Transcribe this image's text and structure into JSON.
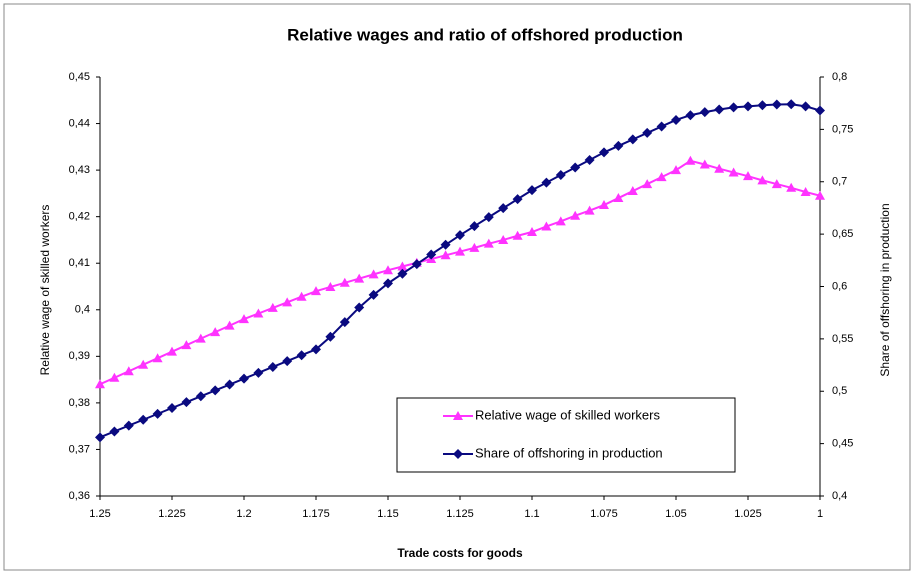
{
  "chart_data": {
    "type": "line",
    "title": "Relative wages and ratio of offshored production",
    "x_label": "Trade costs for goods",
    "y_label": "Relative wage of skilled workers",
    "y2_label": "Share of offshoring in production",
    "x": [
      1.25,
      1.245,
      1.24,
      1.235,
      1.23,
      1.225,
      1.22,
      1.215,
      1.21,
      1.205,
      1.2,
      1.195,
      1.19,
      1.185,
      1.18,
      1.175,
      1.17,
      1.165,
      1.16,
      1.155,
      1.15,
      1.145,
      1.14,
      1.135,
      1.13,
      1.125,
      1.12,
      1.115,
      1.11,
      1.105,
      1.1,
      1.095,
      1.09,
      1.085,
      1.08,
      1.075,
      1.07,
      1.065,
      1.06,
      1.055,
      1.05,
      1.045,
      1.04,
      1.035,
      1.03,
      1.025,
      1.02,
      1.015,
      1.01,
      1.005,
      1
    ],
    "xlim": [
      1.25,
      1
    ],
    "xticks": [
      1.25,
      1.225,
      1.2,
      1.175,
      1.15,
      1.125,
      1.1,
      1.075,
      1.05,
      1.025,
      1
    ],
    "ylim": [
      0.36,
      0.45
    ],
    "yticks": [
      {
        "value": 0.36,
        "label": "0,36"
      },
      {
        "value": 0.37,
        "label": "0,37"
      },
      {
        "value": 0.38,
        "label": "0,38"
      },
      {
        "value": 0.39,
        "label": "0,39"
      },
      {
        "value": 0.4,
        "label": "0,4"
      },
      {
        "value": 0.41,
        "label": "0,41"
      },
      {
        "value": 0.42,
        "label": "0,42"
      },
      {
        "value": 0.43,
        "label": "0,43"
      },
      {
        "value": 0.44,
        "label": "0,44"
      },
      {
        "value": 0.45,
        "label": "0,45"
      }
    ],
    "y2lim": [
      0.4,
      0.8
    ],
    "y2ticks": [
      {
        "value": 0.4,
        "label": "0,4"
      },
      {
        "value": 0.45,
        "label": "0,45"
      },
      {
        "value": 0.5,
        "label": "0,5"
      },
      {
        "value": 0.55,
        "label": "0,55"
      },
      {
        "value": 0.6,
        "label": "0,6"
      },
      {
        "value": 0.65,
        "label": "0,65"
      },
      {
        "value": 0.7,
        "label": "0,7"
      },
      {
        "value": 0.75,
        "label": "0,75"
      },
      {
        "value": 0.8,
        "label": "0,8"
      }
    ],
    "grid": false,
    "legend": "lower right",
    "series": [
      {
        "name": "Relative wage of skilled workers",
        "color": "#ff33ff",
        "marker": "triangle",
        "values": [
          0.384,
          0.3854,
          0.3868,
          0.3882,
          0.3896,
          0.391,
          0.3924,
          0.3938,
          0.3952,
          0.3966,
          0.398,
          0.3992,
          0.4004,
          0.4016,
          0.4028,
          0.404,
          0.4049,
          0.4058,
          0.4067,
          0.4076,
          0.4085,
          0.4093,
          0.4101,
          0.4109,
          0.4117,
          0.4125,
          0.4133,
          0.4142,
          0.415,
          0.4159,
          0.4167,
          0.4179,
          0.419,
          0.4202,
          0.4213,
          0.4225,
          0.424,
          0.4255,
          0.427,
          0.4285,
          0.43,
          0.432,
          0.4312,
          0.4303,
          0.4295,
          0.4287,
          0.4278,
          0.427,
          0.4262,
          0.4253,
          0.4245
        ]
      },
      {
        "name": "Share of offshoring in production",
        "color": "#0a0a80",
        "marker": "diamond",
        "axis": "y2",
        "values": [
          0.456,
          0.4616,
          0.4672,
          0.4728,
          0.4784,
          0.484,
          0.4896,
          0.4952,
          0.5008,
          0.5064,
          0.512,
          0.5176,
          0.5232,
          0.5288,
          0.5344,
          0.54,
          0.552,
          0.566,
          0.58,
          0.592,
          0.603,
          0.6122,
          0.6214,
          0.6306,
          0.6398,
          0.649,
          0.6576,
          0.6662,
          0.6748,
          0.6834,
          0.692,
          0.6992,
          0.7064,
          0.7136,
          0.7208,
          0.728,
          0.7342,
          0.7404,
          0.7466,
          0.7528,
          0.759,
          0.7635,
          0.7665,
          0.769,
          0.771,
          0.772,
          0.773,
          0.7737,
          0.774,
          0.772,
          0.768
        ]
      }
    ]
  }
}
